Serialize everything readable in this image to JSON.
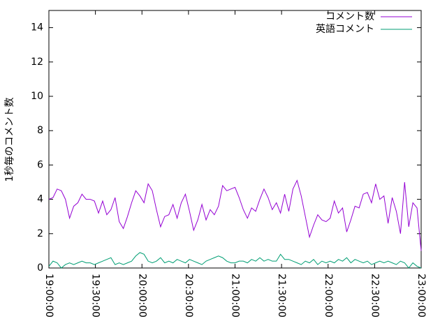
{
  "chart_data": {
    "type": "line",
    "y_label": "1秒毎のコメント数",
    "x": [
      68400,
      68560,
      68720,
      68880,
      69040,
      69200,
      69360,
      69520,
      69680,
      69840,
      70000,
      70160,
      70320,
      70480,
      70640,
      70800,
      70960,
      71120,
      71280,
      71440,
      71600,
      71760,
      71920,
      72080,
      72240,
      72400,
      72560,
      72720,
      72880,
      73040,
      73200,
      73360,
      73520,
      73680,
      73840,
      74000,
      74160,
      74320,
      74480,
      74640,
      74800,
      74960,
      75120,
      75280,
      75440,
      75600,
      75760,
      75920,
      76080,
      76240,
      76400,
      76560,
      76720,
      76880,
      77040,
      77200,
      77360,
      77520,
      77680,
      77840,
      78000,
      78160,
      78320,
      78480,
      78640,
      78800,
      78960,
      79120,
      79280,
      79440,
      79600,
      79760,
      79920,
      80080,
      80240,
      80400,
      80560,
      80720,
      80880,
      81040,
      81200,
      81360,
      81520,
      81680,
      81840,
      82000,
      82160,
      82320,
      82480,
      82640,
      82800
    ],
    "series": [
      {
        "name": "コメント数",
        "color": "#9400d3",
        "values": [
          4.0,
          4.1,
          4.6,
          4.5,
          4.0,
          2.9,
          3.6,
          3.8,
          4.3,
          4.0,
          4.0,
          3.9,
          3.2,
          3.9,
          3.1,
          3.4,
          4.1,
          2.7,
          2.3,
          3.0,
          3.8,
          4.5,
          4.2,
          3.8,
          4.9,
          4.5,
          3.4,
          2.4,
          3.0,
          3.1,
          3.7,
          2.9,
          3.8,
          4.3,
          3.3,
          2.2,
          2.8,
          3.7,
          2.8,
          3.4,
          3.1,
          3.6,
          4.8,
          4.5,
          4.6,
          4.7,
          4.1,
          3.4,
          2.9,
          3.5,
          3.3,
          4.0,
          4.6,
          4.1,
          3.4,
          3.8,
          3.2,
          4.3,
          3.3,
          4.6,
          5.1,
          4.2,
          3.0,
          1.8,
          2.5,
          3.1,
          2.8,
          2.7,
          2.9,
          3.9,
          3.2,
          3.5,
          2.1,
          2.8,
          3.6,
          3.5,
          4.3,
          4.4,
          3.8,
          4.9,
          4.0,
          4.2,
          2.6,
          4.1,
          3.3,
          2.0,
          5.0,
          2.4,
          3.8,
          3.5,
          1.0
        ]
      },
      {
        "name": "英語コメント",
        "color": "#009e73",
        "values": [
          0.1,
          0.4,
          0.3,
          0.0,
          0.2,
          0.3,
          0.2,
          0.3,
          0.4,
          0.3,
          0.3,
          0.2,
          0.3,
          0.4,
          0.5,
          0.6,
          0.2,
          0.3,
          0.2,
          0.3,
          0.4,
          0.7,
          0.9,
          0.8,
          0.4,
          0.3,
          0.4,
          0.6,
          0.3,
          0.4,
          0.3,
          0.5,
          0.4,
          0.3,
          0.5,
          0.4,
          0.3,
          0.2,
          0.4,
          0.5,
          0.6,
          0.7,
          0.6,
          0.4,
          0.3,
          0.3,
          0.4,
          0.4,
          0.3,
          0.5,
          0.4,
          0.6,
          0.4,
          0.5,
          0.4,
          0.4,
          0.8,
          0.5,
          0.5,
          0.4,
          0.3,
          0.2,
          0.4,
          0.3,
          0.5,
          0.2,
          0.4,
          0.3,
          0.4,
          0.3,
          0.5,
          0.4,
          0.6,
          0.3,
          0.5,
          0.4,
          0.3,
          0.4,
          0.2,
          0.3,
          0.4,
          0.3,
          0.4,
          0.3,
          0.2,
          0.4,
          0.3,
          0.0,
          0.3,
          0.1,
          0.0
        ]
      }
    ],
    "xlim": [
      68400,
      82800
    ],
    "xticks": [
      {
        "value": 68400,
        "label": "19:00:00"
      },
      {
        "value": 70200,
        "label": "19:30:00"
      },
      {
        "value": 72000,
        "label": "20:00:00"
      },
      {
        "value": 73800,
        "label": "20:30:00"
      },
      {
        "value": 75600,
        "label": "21:00:00"
      },
      {
        "value": 77400,
        "label": "21:30:00"
      },
      {
        "value": 79200,
        "label": "22:00:00"
      },
      {
        "value": 81000,
        "label": "22:30:00"
      },
      {
        "value": 82800,
        "label": "23:00:00"
      }
    ],
    "ylim": [
      0,
      15
    ],
    "yticks": [
      0,
      2,
      4,
      6,
      8,
      10,
      12,
      14
    ],
    "legend": "top-right"
  }
}
